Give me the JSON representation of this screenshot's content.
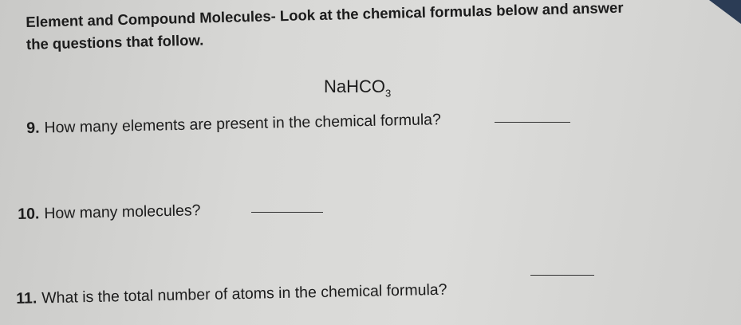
{
  "header": "Element and Compound Molecules- Look at the chemical formulas below and answer the questions that follow.",
  "formula": {
    "base": "NaHCO",
    "subscript": "3"
  },
  "questions": [
    {
      "number": "9.",
      "text": "How many elements are present in the chemical formula?"
    },
    {
      "number": "10.",
      "text": "How many molecules?"
    },
    {
      "number": "11.",
      "text": "What is the total number of atoms in the chemical formula?"
    }
  ]
}
